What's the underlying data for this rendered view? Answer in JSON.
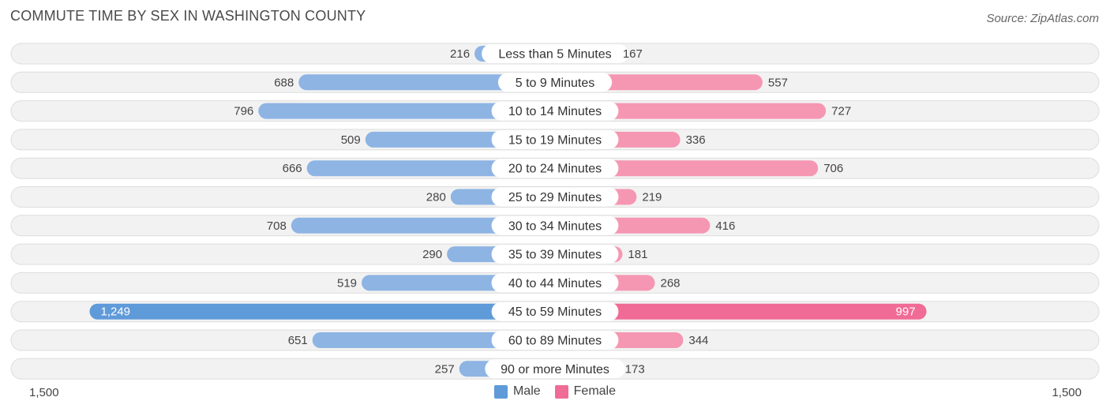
{
  "title": "COMMUTE TIME BY SEX IN WASHINGTON COUNTY",
  "source": "Source: ZipAtlas.com",
  "colors": {
    "male": "#8db4e3",
    "male_strong": "#5f9ad9",
    "female": "#f597b3",
    "female_strong": "#f06b96",
    "row_bg": "#f2f2f2",
    "row_border": "#dddddd"
  },
  "chart_data": {
    "type": "bar",
    "orientation": "diverging-horizontal",
    "categories": [
      "Less than 5 Minutes",
      "5 to 9 Minutes",
      "10 to 14 Minutes",
      "15 to 19 Minutes",
      "20 to 24 Minutes",
      "25 to 29 Minutes",
      "30 to 34 Minutes",
      "35 to 39 Minutes",
      "40 to 44 Minutes",
      "45 to 59 Minutes",
      "60 to 89 Minutes",
      "90 or more Minutes"
    ],
    "series": [
      {
        "name": "Male",
        "values": [
          216,
          688,
          796,
          509,
          666,
          280,
          708,
          290,
          519,
          1249,
          651,
          257
        ],
        "labels": [
          "216",
          "688",
          "796",
          "509",
          "666",
          "280",
          "708",
          "290",
          "519",
          "1,249",
          "651",
          "257"
        ]
      },
      {
        "name": "Female",
        "values": [
          167,
          557,
          727,
          336,
          706,
          219,
          416,
          181,
          268,
          997,
          344,
          173
        ],
        "labels": [
          "167",
          "557",
          "727",
          "336",
          "706",
          "219",
          "416",
          "181",
          "268",
          "997",
          "344",
          "173"
        ]
      }
    ],
    "xlim": [
      -1500,
      1500
    ],
    "axis_labels": {
      "left": "1,500",
      "right": "1,500"
    },
    "legend_position": "bottom-center"
  }
}
